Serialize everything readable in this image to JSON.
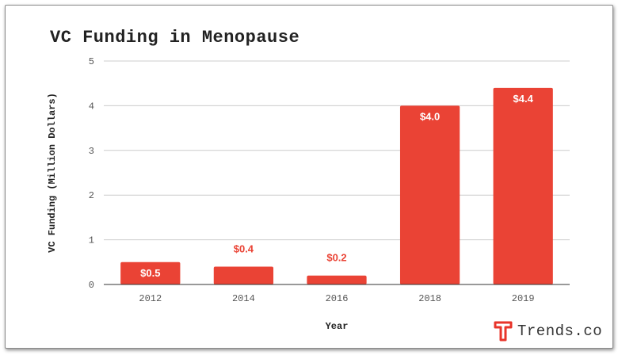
{
  "brand": {
    "name": "Trends.co",
    "icon": "trends-logo-icon",
    "accent": "#E8342A"
  },
  "chart_data": {
    "type": "bar",
    "title": "VC Funding in Menopause",
    "xlabel": "Year",
    "ylabel": "VC Funding (Million Dollars)",
    "categories": [
      "2012",
      "2014",
      "2016",
      "2018",
      "2019"
    ],
    "values": [
      0.5,
      0.4,
      0.2,
      4.0,
      4.4
    ],
    "data_labels": [
      "$0.5",
      "$0.4",
      "$0.2",
      "$4.0",
      "$4.4"
    ],
    "ylim": [
      0,
      5
    ],
    "yticks": [
      "0",
      "1",
      "2",
      "3",
      "4",
      "5"
    ],
    "grid": true,
    "bar_color": "#EA4335"
  }
}
